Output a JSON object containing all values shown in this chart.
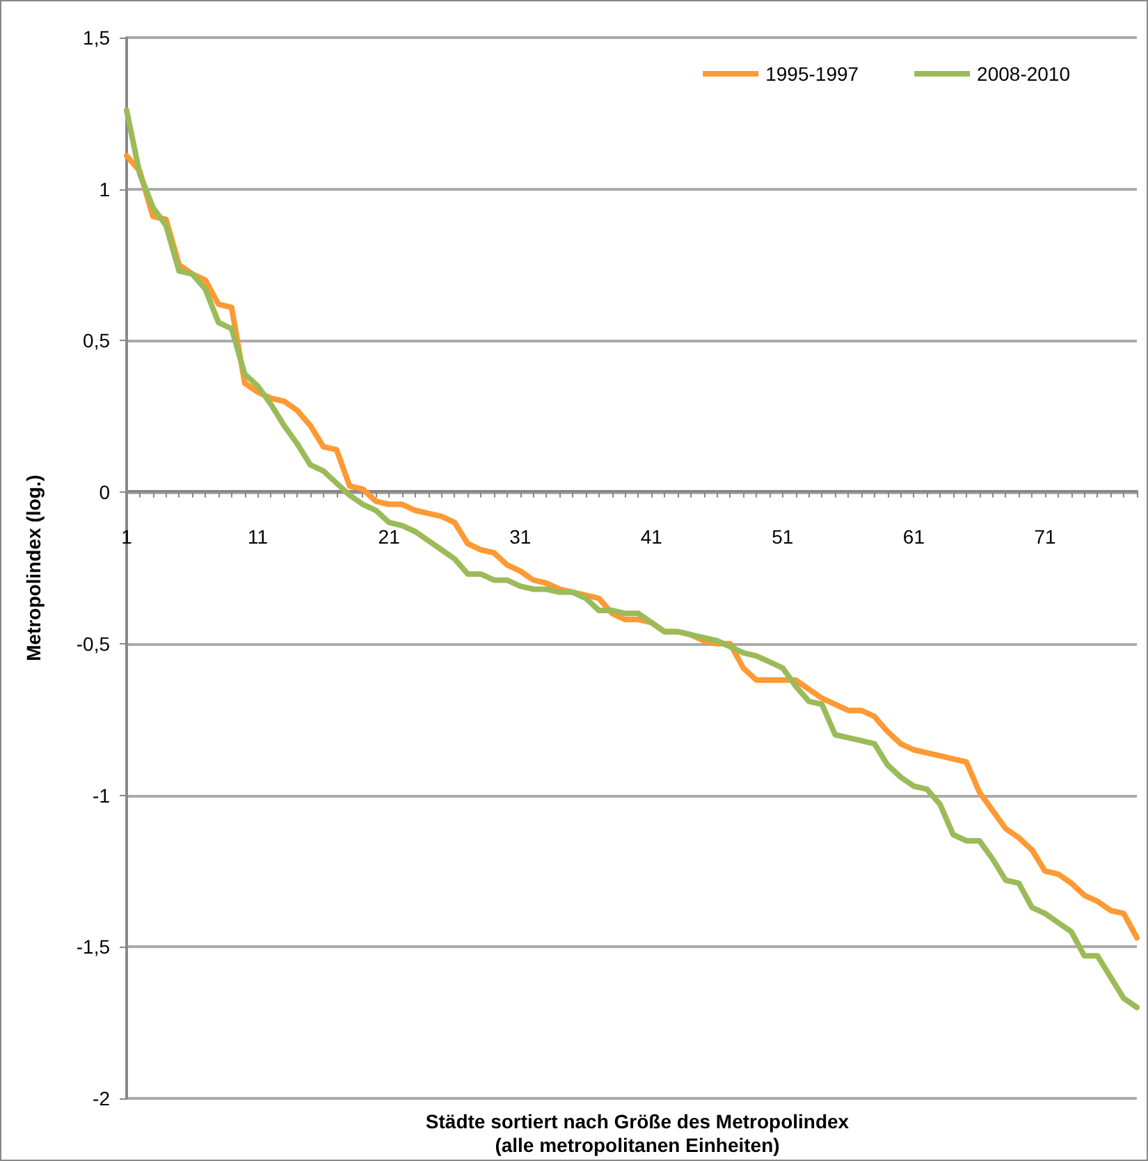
{
  "chart_data": {
    "type": "line",
    "xlabel": "Städte sortiert nach Größe des Metropolindex\n(alle metropolitanen Einheiten)",
    "ylabel": "Metropolindex (log.)",
    "categories": [
      "1",
      null,
      null,
      null,
      null,
      null,
      null,
      null,
      null,
      null,
      "11",
      null,
      null,
      null,
      null,
      null,
      null,
      null,
      null,
      null,
      "21",
      null,
      null,
      null,
      null,
      null,
      null,
      null,
      null,
      null,
      "31",
      null,
      null,
      null,
      null,
      null,
      null,
      null,
      null,
      null,
      "41",
      null,
      null,
      null,
      null,
      null,
      null,
      null,
      null,
      null,
      "51",
      null,
      null,
      null,
      null,
      null,
      null,
      null,
      null,
      null,
      "61",
      null,
      null,
      null,
      null,
      null,
      null,
      null,
      null,
      null,
      "71",
      null,
      null,
      null,
      null,
      null,
      null,
      null
    ],
    "series": [
      {
        "name": "1995-1997",
        "color": "#ff9933",
        "values": [
          1.11,
          1.06,
          0.91,
          0.9,
          0.75,
          0.72,
          0.7,
          0.62,
          0.61,
          0.36,
          0.33,
          0.31,
          0.3,
          0.27,
          0.22,
          0.15,
          0.14,
          0.02,
          0.01,
          -0.03,
          -0.04,
          -0.04,
          -0.06,
          -0.07,
          -0.08,
          -0.1,
          -0.17,
          -0.19,
          -0.2,
          -0.24,
          -0.26,
          -0.29,
          -0.3,
          -0.32,
          -0.33,
          -0.34,
          -0.35,
          -0.4,
          -0.42,
          -0.42,
          -0.43,
          -0.46,
          -0.46,
          -0.47,
          -0.49,
          -0.5,
          -0.5,
          -0.58,
          -0.62,
          -0.62,
          -0.62,
          -0.62,
          -0.65,
          -0.68,
          -0.7,
          -0.72,
          -0.72,
          -0.74,
          -0.79,
          -0.83,
          -0.85,
          -0.86,
          -0.87,
          -0.88,
          -0.89,
          -0.99,
          -1.05,
          -1.11,
          -1.14,
          -1.18,
          -1.25,
          -1.26,
          -1.29,
          -1.33,
          -1.35,
          -1.38,
          -1.39,
          -1.47
        ]
      },
      {
        "name": "2008-2010",
        "color": "#9bbb59",
        "values": [
          1.26,
          1.05,
          0.94,
          0.88,
          0.73,
          0.72,
          0.67,
          0.56,
          0.54,
          0.39,
          0.35,
          0.29,
          0.22,
          0.16,
          0.09,
          0.07,
          0.03,
          -0.01,
          -0.04,
          -0.06,
          -0.1,
          -0.11,
          -0.13,
          -0.16,
          -0.19,
          -0.22,
          -0.27,
          -0.27,
          -0.29,
          -0.29,
          -0.31,
          -0.32,
          -0.32,
          -0.33,
          -0.33,
          -0.35,
          -0.39,
          -0.39,
          -0.4,
          -0.4,
          -0.43,
          -0.46,
          -0.46,
          -0.47,
          -0.48,
          -0.49,
          -0.51,
          -0.53,
          -0.54,
          -0.56,
          -0.58,
          -0.64,
          -0.69,
          -0.7,
          -0.8,
          -0.81,
          -0.82,
          -0.83,
          -0.9,
          -0.94,
          -0.97,
          -0.98,
          -1.03,
          -1.13,
          -1.15,
          -1.15,
          -1.21,
          -1.28,
          -1.29,
          -1.37,
          -1.39,
          -1.42,
          -1.45,
          -1.53,
          -1.53,
          -1.6,
          -1.67,
          -1.7
        ]
      }
    ],
    "ylim": [
      -2,
      1.5
    ],
    "yticks": [
      -2,
      {
        "value": -1.5,
        "label": "-1,5"
      },
      -1,
      {
        "value": -0.5,
        "label": "-0,5"
      },
      0,
      {
        "value": 0.5,
        "label": "0,5"
      },
      1,
      {
        "value": 1.5,
        "label": "1,5"
      }
    ],
    "grid": "y",
    "legend": "top right",
    "marker": "none",
    "line_style": "solid"
  }
}
